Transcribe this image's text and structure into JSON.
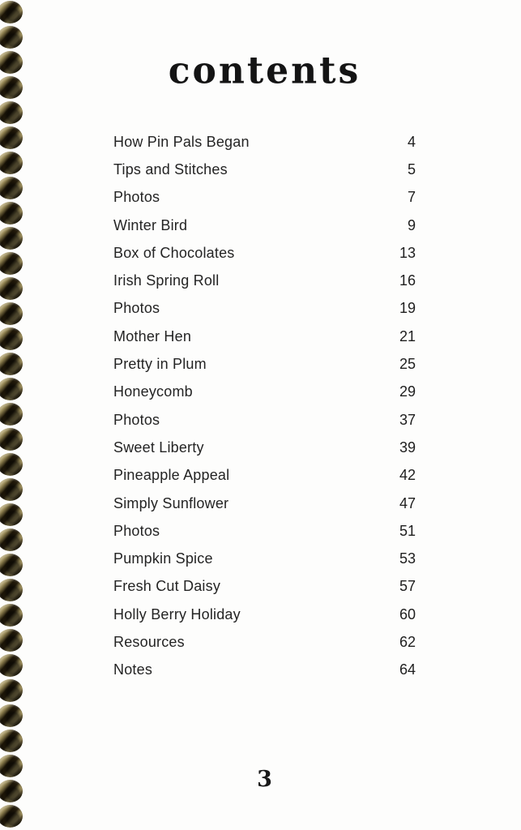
{
  "page": {
    "title": "contents",
    "folio": "3"
  },
  "toc": {
    "entries": [
      {
        "label": "How Pin Pals Began",
        "page": "4"
      },
      {
        "label": "Tips and Stitches",
        "page": "5"
      },
      {
        "label": "Photos",
        "page": "7"
      },
      {
        "label": "Winter Bird",
        "page": "9"
      },
      {
        "label": "Box of Chocolates",
        "page": "13"
      },
      {
        "label": "Irish Spring Roll",
        "page": "16"
      },
      {
        "label": "Photos",
        "page": "19"
      },
      {
        "label": "Mother Hen",
        "page": "21"
      },
      {
        "label": "Pretty in Plum",
        "page": "25"
      },
      {
        "label": "Honeycomb",
        "page": "29"
      },
      {
        "label": "Photos",
        "page": "37"
      },
      {
        "label": "Sweet Liberty",
        "page": "39"
      },
      {
        "label": "Pineapple Appeal",
        "page": "42"
      },
      {
        "label": "Simply Sunflower",
        "page": "47"
      },
      {
        "label": "Photos",
        "page": "51"
      },
      {
        "label": "Pumpkin Spice",
        "page": "53"
      },
      {
        "label": "Fresh Cut Daisy",
        "page": "57"
      },
      {
        "label": "Holly Berry Holiday",
        "page": "60"
      },
      {
        "label": "Resources",
        "page": "62"
      },
      {
        "label": "Notes",
        "page": "64"
      }
    ]
  },
  "spiral": {
    "ring_count": 33,
    "wire_color": "#b3a26b",
    "hole_color": "#1c1507"
  }
}
